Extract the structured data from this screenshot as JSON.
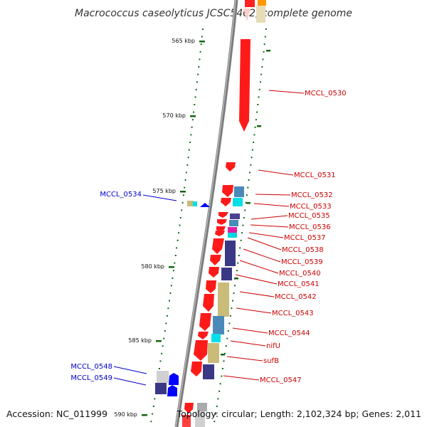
{
  "title": "Macrococcus caseolyticus JCSC5402, complete genome",
  "footer": {
    "accession": "Accession: NC_011999",
    "summary": "Topology: circular; Length: 2,102,324 bp; Genes: 2,011"
  },
  "colors": {
    "forward_label": "#cc0000",
    "reverse_label": "#0000cc",
    "forward_gene": "#ff0000",
    "reverse_gene": "#0000ff",
    "backbone": "#888888",
    "tick": "#116611"
  },
  "scale_labels": [
    "565 kbp",
    "570 kbp",
    "575 kbp",
    "580 kbp",
    "585 kbp",
    "590 kbp"
  ],
  "forward_labels": [
    "MCCL_0530",
    "MCCL_0531",
    "MCCL_0532",
    "MCCL_0533",
    "MCCL_0535",
    "MCCL_0536",
    "MCCL_0537",
    "MCCL_0538",
    "MCCL_0539",
    "MCCL_0540",
    "MCCL_0541",
    "MCCL_0542",
    "MCCL_0543",
    "MCCL_0544",
    "nifU",
    "sufB",
    "MCCL_0547"
  ],
  "reverse_labels": [
    "MCCL_0534",
    "MCCL_0548",
    "MCCL_0549"
  ]
}
